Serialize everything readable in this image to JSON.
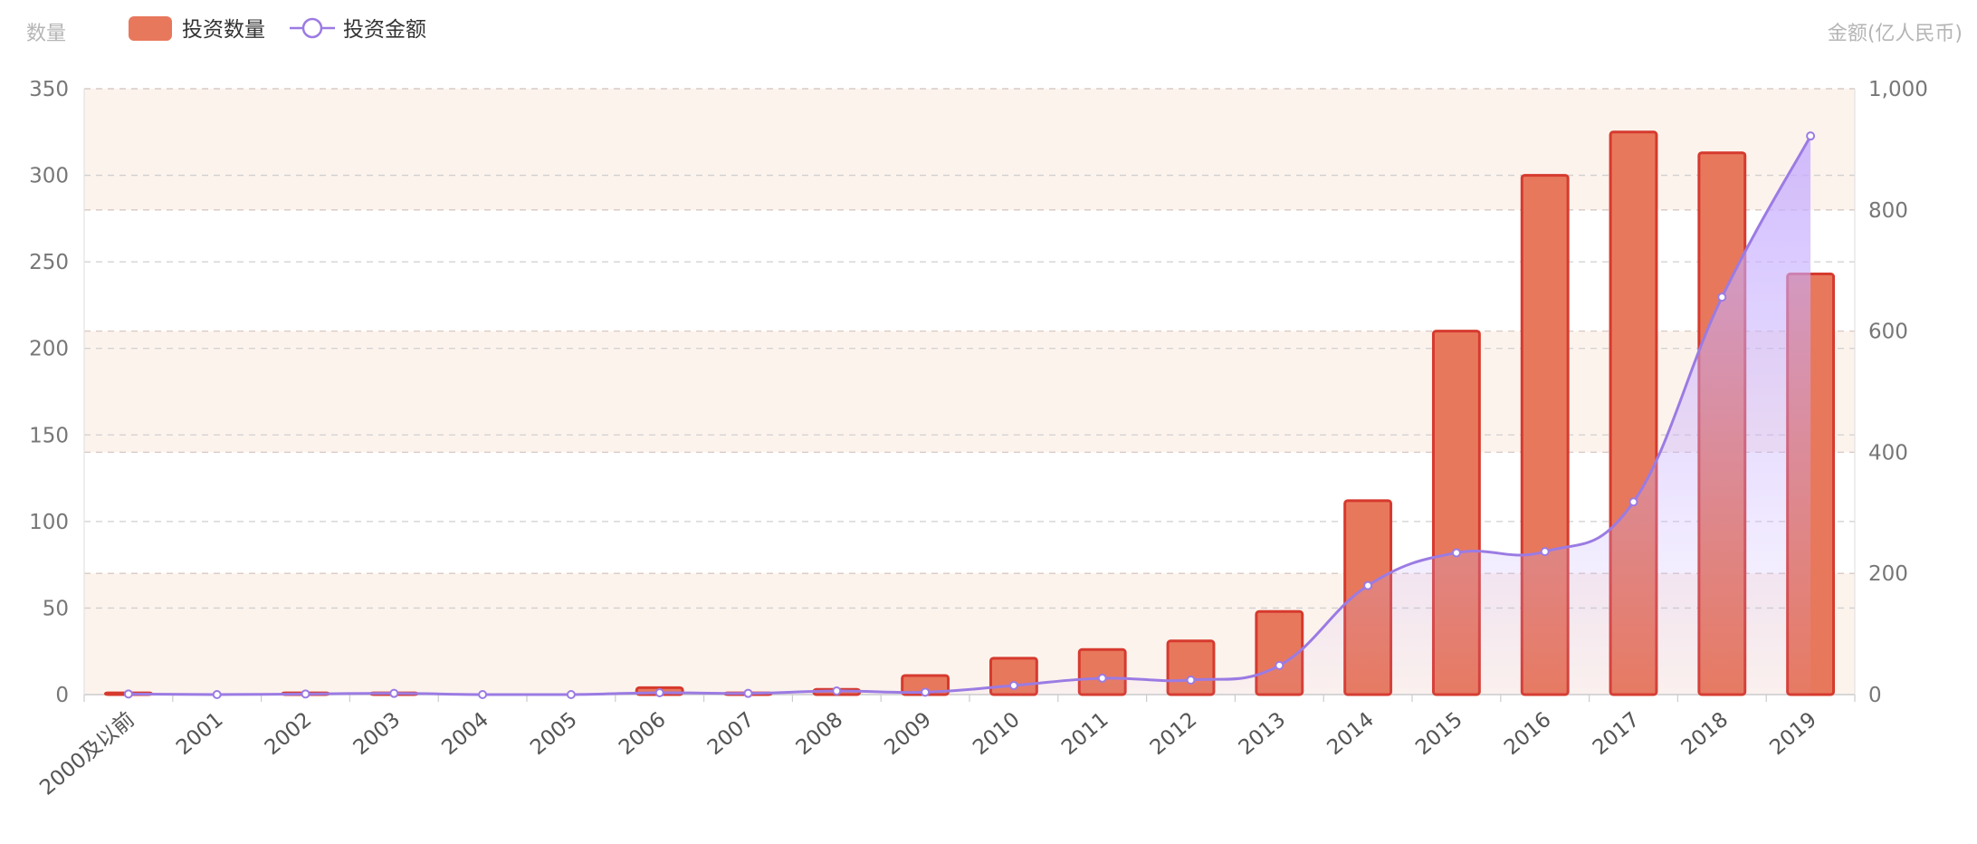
{
  "chart_data": {
    "type": "bar+line",
    "title": "",
    "legend": {
      "placement": "top-left",
      "items": [
        {
          "name": "投资数量",
          "symbol": "bar",
          "color": "#e8785c"
        },
        {
          "name": "投资金额",
          "symbol": "line",
          "color": "#9b7be3"
        }
      ]
    },
    "y_left": {
      "label": "数量",
      "ylim": [
        0,
        350
      ],
      "ticks": [
        "0",
        "50",
        "100",
        "150",
        "200",
        "250",
        "300",
        "350"
      ]
    },
    "y_right": {
      "label": "金额(亿人民币)",
      "ylim": [
        0,
        1000
      ],
      "ticks": [
        "0",
        "200",
        "400",
        "600",
        "800",
        "1,000"
      ]
    },
    "categories": [
      "2000及以前",
      "2001",
      "2002",
      "2003",
      "2004",
      "2005",
      "2006",
      "2007",
      "2008",
      "2009",
      "2010",
      "2011",
      "2012",
      "2013",
      "2014",
      "2015",
      "2016",
      "2017",
      "2018",
      "2019"
    ],
    "series": [
      {
        "name": "投资数量",
        "type": "bar",
        "axis": "left",
        "values": [
          1,
          0,
          1,
          1,
          0,
          0,
          4,
          1,
          3,
          11,
          21,
          26,
          31,
          48,
          112,
          210,
          300,
          325,
          313,
          243
        ]
      },
      {
        "name": "投资金额",
        "type": "line",
        "axis": "right",
        "smooth": true,
        "area": true,
        "values": [
          1,
          0,
          1,
          2,
          0,
          0,
          3,
          2,
          6,
          4,
          15,
          27,
          24,
          48,
          180,
          234,
          236,
          318,
          656,
          922
        ]
      }
    ],
    "grid": true,
    "colors": {
      "bar_fill": "#e8785c",
      "bar_stroke": "#d63a2e",
      "line": "#9b7be3",
      "area_top": "#c6adff",
      "band": "#fdf3ed",
      "axis_text": "#777777",
      "axis_title": "#b5b5b5"
    }
  }
}
